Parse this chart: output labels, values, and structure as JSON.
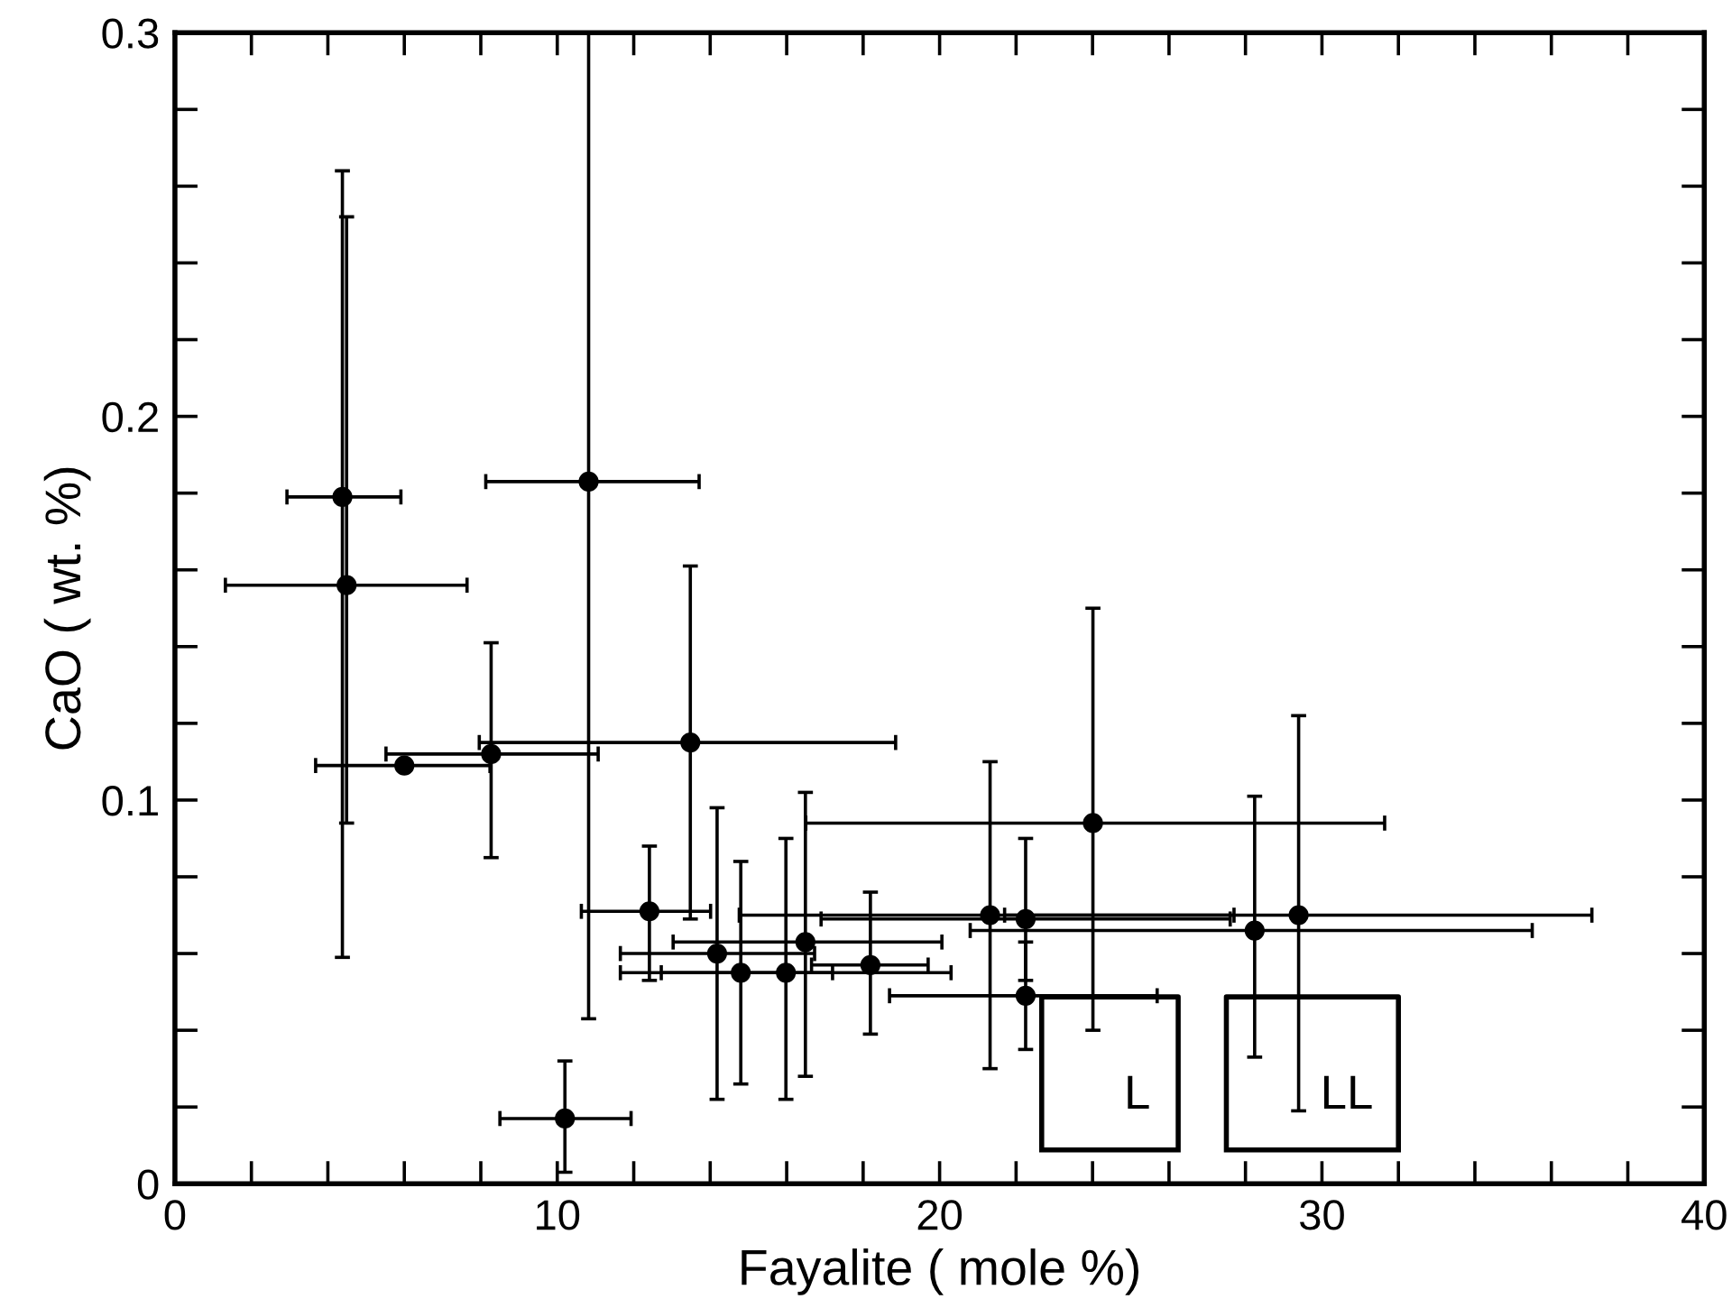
{
  "chart_data": {
    "type": "scatter",
    "xlabel": "Fayalite ( mole %)",
    "ylabel": "CaO ( wt. %)",
    "xlim": [
      0,
      40
    ],
    "ylim": [
      0,
      0.3
    ],
    "xticks": [
      0,
      {
        "value": 2,
        "label": null
      },
      {
        "value": 4,
        "label": null
      },
      {
        "value": 6,
        "label": null
      },
      {
        "value": 8,
        "label": null
      },
      10,
      {
        "value": 12,
        "label": null
      },
      {
        "value": 14,
        "label": null
      },
      {
        "value": 16,
        "label": null
      },
      {
        "value": 18,
        "label": null
      },
      20,
      {
        "value": 22,
        "label": null
      },
      {
        "value": 24,
        "label": null
      },
      {
        "value": 26,
        "label": null
      },
      {
        "value": 28,
        "label": null
      },
      30,
      {
        "value": 32,
        "label": null
      },
      {
        "value": 34,
        "label": null
      },
      {
        "value": 36,
        "label": null
      },
      {
        "value": 38,
        "label": null
      },
      40
    ],
    "yticks": [
      0,
      {
        "value": 0.02,
        "label": null
      },
      {
        "value": 0.04,
        "label": null
      },
      {
        "value": 0.06,
        "label": null
      },
      {
        "value": 0.08,
        "label": null
      },
      0.1,
      {
        "value": 0.12,
        "label": null
      },
      {
        "value": 0.14,
        "label": null
      },
      {
        "value": 0.16,
        "label": null
      },
      {
        "value": 0.18,
        "label": null
      },
      0.2,
      {
        "value": 0.22,
        "label": null
      },
      {
        "value": 0.24,
        "label": null
      },
      {
        "value": 0.26,
        "label": null
      },
      {
        "value": 0.28,
        "label": null
      },
      0.3
    ],
    "grid": false,
    "marker": "circle",
    "series": [
      {
        "color": "#000000",
        "x": [
          4.38,
          4.49,
          6.0,
          8.27,
          10.82,
          13.48,
          12.41,
          14.18,
          14.8,
          15.98,
          16.49,
          18.19,
          10.2,
          21.32,
          22.25,
          22.25,
          28.24,
          29.39,
          24.01
        ],
        "values": [
          0.179,
          0.156,
          0.109,
          0.112,
          0.183,
          0.115,
          0.071,
          0.06,
          0.055,
          0.055,
          0.063,
          0.057,
          0.017,
          0.07,
          0.069,
          0.049,
          0.066,
          0.07,
          0.094
        ],
        "errors": [
          [
            0.059,
            0.264
          ],
          [
            0.094,
            0.252
          ],
          null,
          [
            0.085,
            0.141
          ],
          [
            0.043,
            0.3
          ],
          [
            0.069,
            0.161
          ],
          [
            0.053,
            0.088
          ],
          [
            0.022,
            0.098
          ],
          [
            0.026,
            0.084
          ],
          [
            0.022,
            0.09
          ],
          [
            0.028,
            0.102
          ],
          [
            0.039,
            0.076
          ],
          [
            0.003,
            0.032
          ],
          [
            0.03,
            0.11
          ],
          [
            0.053,
            0.09
          ],
          [
            0.035,
            0.063
          ],
          [
            0.033,
            0.101
          ],
          [
            0.019,
            0.122
          ],
          [
            0.04,
            0.15
          ]
        ],
        "xerrors": [
          [
            2.93,
            5.91
          ],
          [
            1.32,
            7.64
          ],
          [
            3.68,
            8.24
          ],
          [
            5.52,
            11.07
          ],
          [
            8.13,
            13.71
          ],
          [
            7.96,
            18.85
          ],
          [
            10.63,
            14.01
          ],
          [
            11.65,
            16.73
          ],
          [
            11.65,
            17.2
          ],
          [
            12.72,
            20.3
          ],
          [
            13.03,
            20.06
          ],
          [
            16.65,
            19.7
          ],
          [
            8.5,
            11.93
          ],
          [
            14.76,
            27.7
          ],
          [
            16.9,
            27.6
          ],
          [
            18.69,
            25.69
          ],
          [
            20.8,
            35.5
          ],
          [
            21.7,
            37.06
          ],
          [
            16.5,
            31.64
          ]
        ]
      },
      {
        "type": "line",
        "name": "L",
        "color": "#000000",
        "marker": "none",
        "line_style": "solid",
        "x": [
          22.67,
          22.67,
          26.24,
          26.24,
          null,
          22.67,
          26.24
        ],
        "values": [
          0.0088,
          0.0487,
          0.0487,
          0.0088,
          null,
          0.0088,
          0.0088
        ]
      },
      {
        "type": "line",
        "name": "LL",
        "color": "#000000",
        "marker": "none",
        "line_style": "solid",
        "x": [
          27.5,
          27.5,
          32.0,
          32.0,
          null,
          27.5,
          32.0
        ],
        "values": [
          0.0088,
          0.0487,
          0.0487,
          0.0088,
          null,
          0.0088,
          0.0088
        ]
      }
    ]
  }
}
